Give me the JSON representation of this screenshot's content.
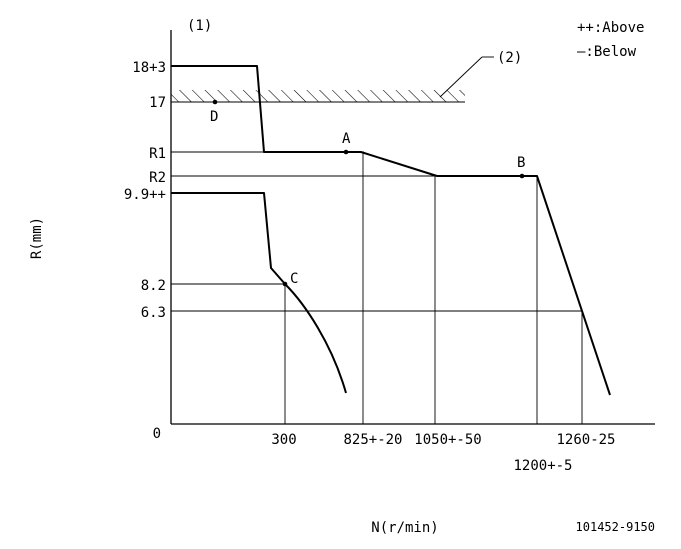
{
  "figure_number": "101452-9150",
  "diagram": {
    "label_1": "(1)",
    "label_2": "(2)",
    "legend": {
      "above": "++:Above",
      "below": "—:Below"
    },
    "y_axis_label": "R(mm)",
    "x_axis_label": "N(r/min)",
    "y_ticks": [
      "18+3",
      "17",
      "R1",
      "R2",
      "9.9++",
      "8.2",
      "6.3"
    ],
    "x_ticks": [
      "300",
      "825+-20",
      "1050+-50",
      "1200+-5",
      "1260-25"
    ],
    "origin_label": "0",
    "points": [
      "A",
      "B",
      "C",
      "D"
    ]
  },
  "colors": {
    "line": "#000000",
    "background": "#ffffff"
  }
}
